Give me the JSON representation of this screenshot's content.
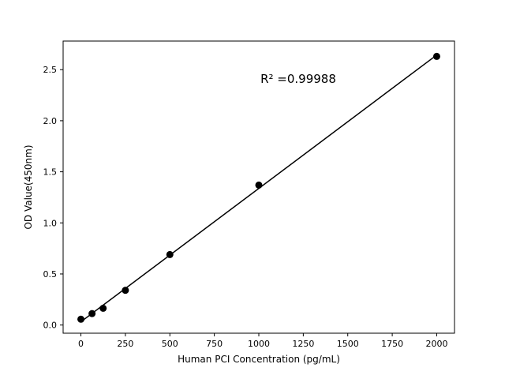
{
  "chart_data": {
    "type": "scatter",
    "x": [
      0,
      62.5,
      125,
      250,
      500,
      1000,
      2000
    ],
    "y": [
      0.057,
      0.112,
      0.164,
      0.34,
      0.69,
      1.37,
      2.63
    ],
    "fit_line": true,
    "annotation": "R² =0.99988",
    "title": "",
    "xlabel": "Human PCI Concentration (pg/mL)",
    "ylabel": "OD Value(450nm)",
    "xticks": [
      0,
      250,
      500,
      750,
      1000,
      1250,
      1500,
      1750,
      2000
    ],
    "yticks": [
      0.0,
      0.5,
      1.0,
      1.5,
      2.0,
      2.5
    ],
    "xlim": [
      -100,
      2100
    ],
    "ylim": [
      -0.08,
      2.78
    ],
    "grid": false,
    "legend": "none",
    "marker_color": "#000000",
    "line_color": "#000000",
    "axis_color": "#000000",
    "background": "#ffffff"
  }
}
